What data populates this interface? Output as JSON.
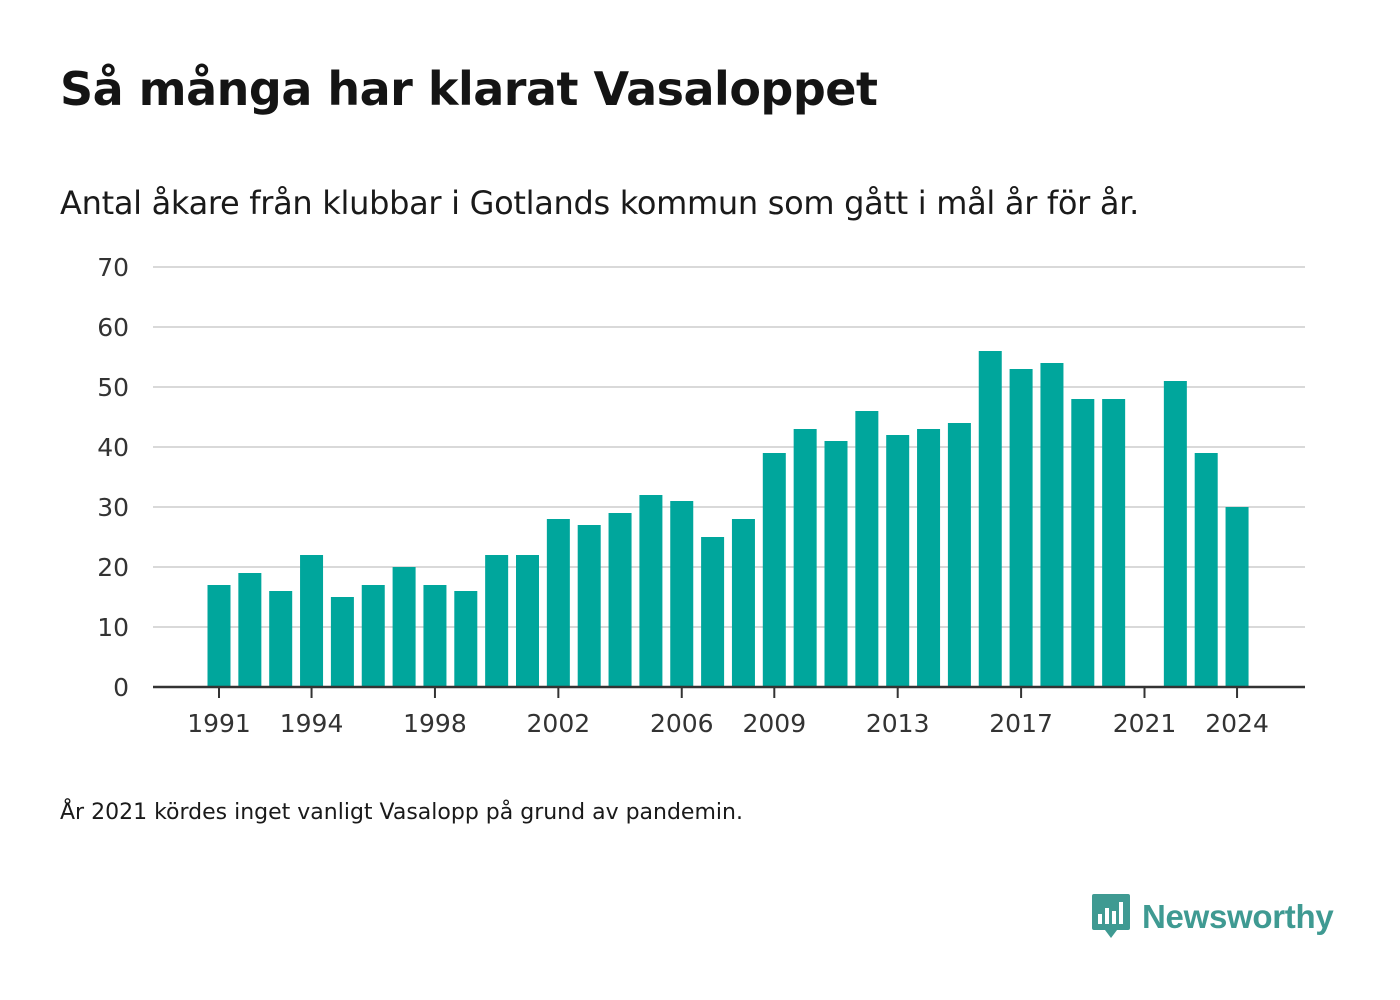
{
  "title": "Så många har klarat Vasaloppet",
  "subtitle": "Antal åkare från klubbar i Gotlands kommun som gått i mål år för år.",
  "footnote": "År 2021 kördes inget vanligt Vasalopp på grund av pandemin.",
  "brand": {
    "name": "Newsworthy",
    "icon": "newsworthy-logo-icon",
    "color": "#3f9a92"
  },
  "colors": {
    "bar": "#00a69c",
    "grid": "#d9d9d9",
    "axis": "#333333"
  },
  "chart_data": {
    "type": "bar",
    "title": "Så många har klarat Vasaloppet",
    "subtitle": "Antal åkare från klubbar i Gotlands kommun som gått i mål år för år.",
    "xlabel": "",
    "ylabel": "",
    "x": [
      1991,
      1992,
      1993,
      1994,
      1995,
      1996,
      1997,
      1998,
      1999,
      2000,
      2001,
      2002,
      2003,
      2004,
      2005,
      2006,
      2007,
      2008,
      2009,
      2010,
      2011,
      2012,
      2013,
      2014,
      2015,
      2016,
      2017,
      2018,
      2019,
      2020,
      2021,
      2022,
      2023,
      2024
    ],
    "values": [
      17,
      19,
      16,
      22,
      15,
      17,
      20,
      17,
      16,
      22,
      22,
      28,
      27,
      29,
      32,
      31,
      25,
      28,
      39,
      43,
      41,
      46,
      42,
      43,
      44,
      56,
      53,
      54,
      48,
      48,
      null,
      51,
      39,
      30
    ],
    "xticks": [
      1991,
      1994,
      1998,
      2002,
      2006,
      2009,
      2013,
      2017,
      2021,
      2024
    ],
    "yticks": [
      0,
      10,
      20,
      30,
      40,
      50,
      60,
      70
    ],
    "ylim": [
      0,
      70
    ],
    "grid": true,
    "legend": "none"
  }
}
